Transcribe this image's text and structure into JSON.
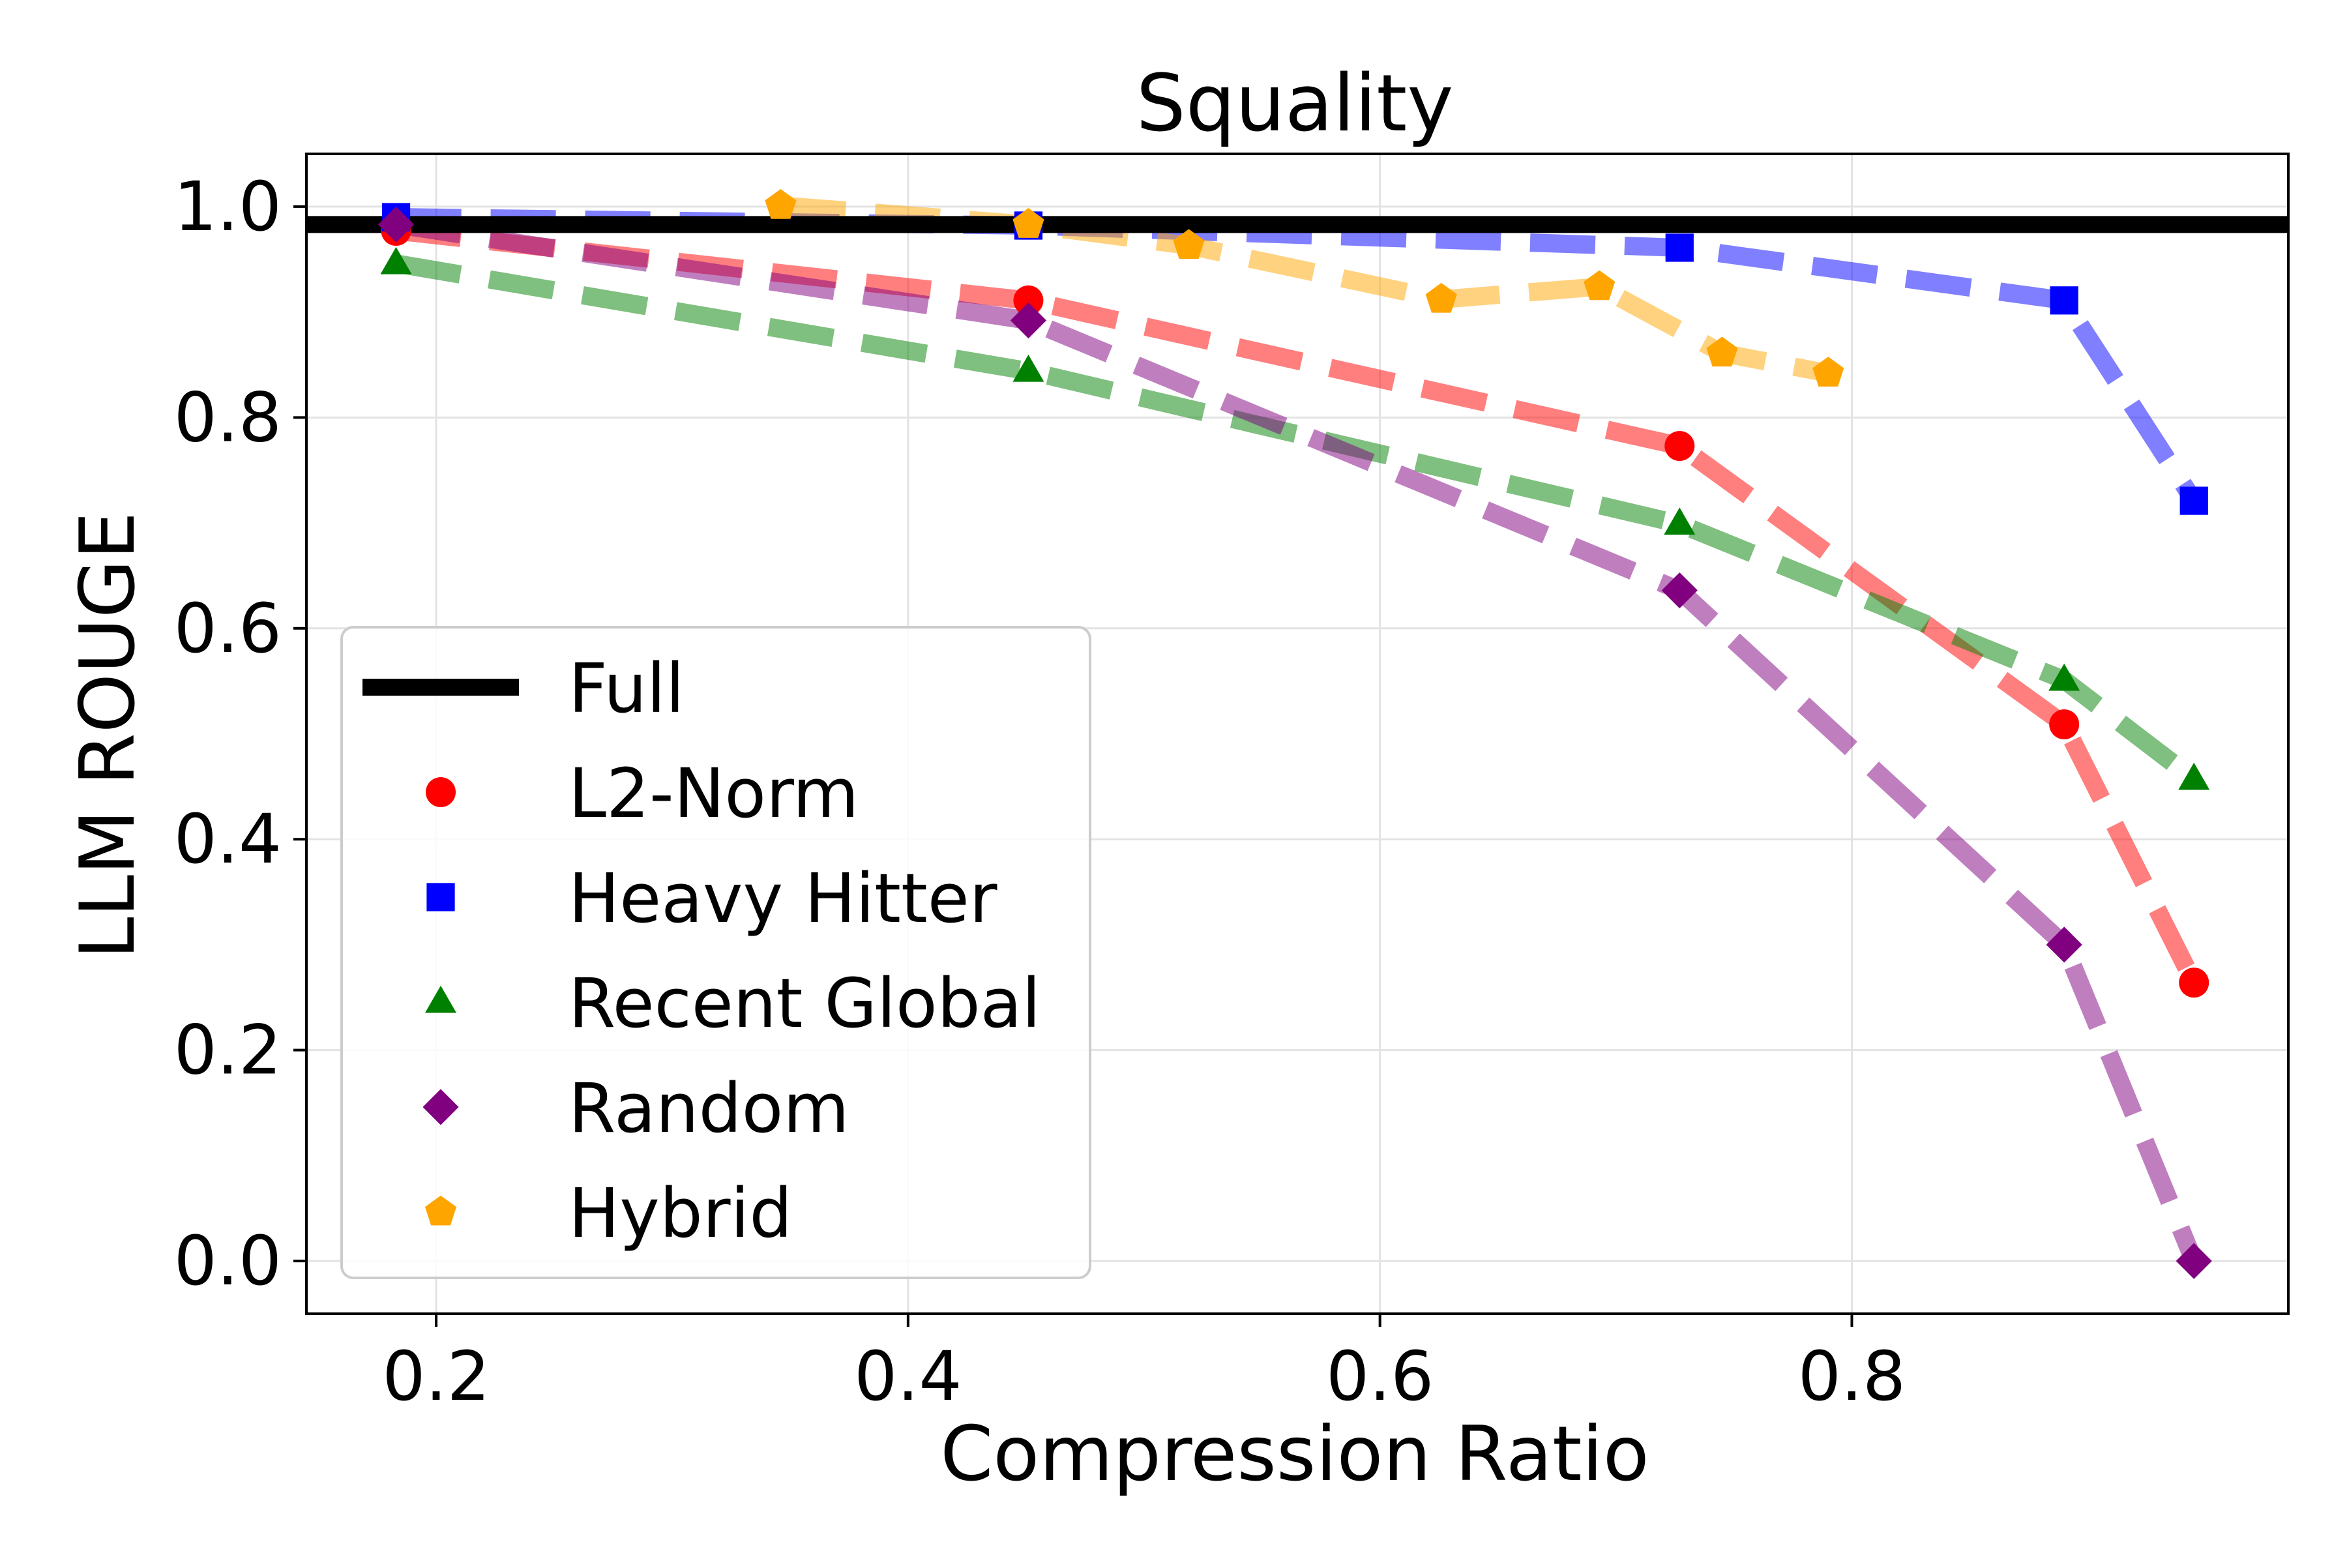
{
  "chart_data": {
    "type": "line",
    "title": "Squality",
    "xlabel": "Compression Ratio",
    "ylabel": "LLM ROUGE",
    "xlim": [
      0.145,
      0.985
    ],
    "ylim": [
      -0.05,
      1.05
    ],
    "xticks": [
      0.2,
      0.4,
      0.6,
      0.8
    ],
    "xtick_labels": [
      "0.2",
      "0.4",
      "0.6",
      "0.8"
    ],
    "yticks": [
      0.0,
      0.2,
      0.4,
      0.6,
      0.8,
      1.0
    ],
    "ytick_labels": [
      "0.0",
      "0.2",
      "0.4",
      "0.6",
      "0.8",
      "1.0"
    ],
    "grid": true,
    "legend_position": "lower-left",
    "baseline": {
      "name": "Full",
      "y": 0.983,
      "color": "#000000"
    },
    "series": [
      {
        "name": "L2-Norm",
        "color": "#ff0000",
        "marker": "circle",
        "x": [
          0.183,
          0.451,
          0.727,
          0.89,
          0.945
        ],
        "y": [
          0.977,
          0.911,
          0.773,
          0.509,
          0.264
        ]
      },
      {
        "name": "Heavy Hitter",
        "color": "#0000ff",
        "marker": "square",
        "x": [
          0.183,
          0.451,
          0.727,
          0.89,
          0.945
        ],
        "y": [
          0.99,
          0.982,
          0.961,
          0.911,
          0.721
        ]
      },
      {
        "name": "Recent Global",
        "color": "#008000",
        "marker": "triangle",
        "x": [
          0.183,
          0.451,
          0.727,
          0.89,
          0.945
        ],
        "y": [
          0.946,
          0.844,
          0.699,
          0.551,
          0.457
        ]
      },
      {
        "name": "Random",
        "color": "#800080",
        "marker": "diamond",
        "x": [
          0.183,
          0.451,
          0.727,
          0.89,
          0.945
        ],
        "y": [
          0.983,
          0.892,
          0.636,
          0.3,
          0.0
        ]
      },
      {
        "name": "Hybrid",
        "color": "#ffa500",
        "marker": "pentagon",
        "x": [
          0.346,
          0.451,
          0.519,
          0.626,
          0.693,
          0.745,
          0.79
        ],
        "y": [
          1.001,
          0.983,
          0.963,
          0.912,
          0.924,
          0.861,
          0.842
        ]
      }
    ]
  }
}
